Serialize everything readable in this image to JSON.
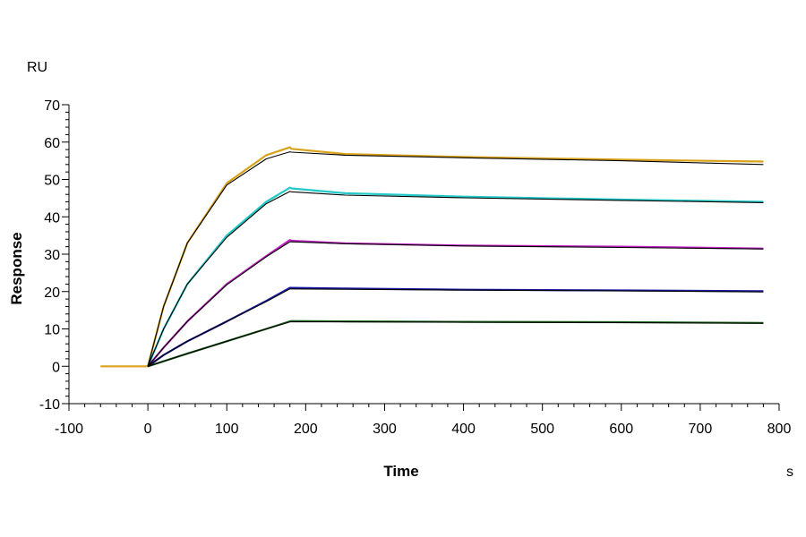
{
  "chart_data": {
    "type": "line",
    "xlabel": "Time",
    "ylabel": "Response",
    "x_unit": "s",
    "y_unit": "RU",
    "xlim": [
      -100,
      800
    ],
    "ylim": [
      -10,
      70
    ],
    "x_ticks": [
      -100,
      0,
      100,
      200,
      300,
      400,
      500,
      600,
      700,
      800
    ],
    "y_ticks": [
      -10,
      0,
      10,
      20,
      30,
      40,
      50,
      60,
      70
    ],
    "grid": false,
    "legend": "none",
    "series": [
      {
        "color": "#d9a21a",
        "x": [
          -60,
          0,
          20,
          50,
          100,
          150,
          180,
          182,
          250,
          400,
          600,
          780
        ],
        "y": [
          0,
          0,
          16,
          33,
          49,
          56.5,
          58.6,
          58.2,
          56.8,
          56,
          55.3,
          54.8
        ]
      },
      {
        "color": "#22c9c9",
        "x": [
          0,
          20,
          50,
          100,
          150,
          180,
          182,
          250,
          400,
          600,
          780
        ],
        "y": [
          0,
          10,
          22,
          35,
          44,
          47.8,
          47.6,
          46.3,
          45.4,
          44.6,
          44
        ]
      },
      {
        "color": "#c020c0",
        "x": [
          0,
          20,
          50,
          100,
          150,
          180,
          182,
          250,
          400,
          600,
          780
        ],
        "y": [
          0,
          5,
          12,
          22,
          29.5,
          33.8,
          33.6,
          32.9,
          32.3,
          32,
          31.5
        ]
      },
      {
        "color": "#1a1aa6",
        "x": [
          0,
          20,
          50,
          100,
          150,
          180,
          182,
          250,
          400,
          600,
          780
        ],
        "y": [
          0,
          3,
          6.7,
          12,
          17.5,
          21,
          21,
          20.8,
          20.5,
          20.3,
          20.1
        ]
      },
      {
        "color": "#1e6a1e",
        "x": [
          0,
          50,
          100,
          150,
          180,
          182,
          250,
          400,
          600,
          780
        ],
        "y": [
          0,
          3.4,
          6.7,
          10,
          12,
          12.1,
          12,
          11.9,
          11.8,
          11.6
        ]
      }
    ],
    "fits": [
      {
        "x": [
          0,
          20,
          50,
          100,
          150,
          180,
          182,
          250,
          400,
          600,
          780
        ],
        "y": [
          0,
          16,
          33,
          48.5,
          55.5,
          57.4,
          57.3,
          56.5,
          55.8,
          55,
          54
        ]
      },
      {
        "x": [
          0,
          20,
          50,
          100,
          150,
          180,
          182,
          250,
          400,
          600,
          780
        ],
        "y": [
          0,
          10,
          22,
          34.5,
          43.5,
          46.8,
          46.7,
          45.8,
          45.1,
          44.4,
          43.8
        ]
      },
      {
        "x": [
          0,
          20,
          50,
          100,
          150,
          180,
          182,
          250,
          400,
          600,
          780
        ],
        "y": [
          0,
          5,
          12,
          21.8,
          29.3,
          33.3,
          33.3,
          32.8,
          32.2,
          31.8,
          31.4
        ]
      },
      {
        "x": [
          0,
          20,
          50,
          100,
          150,
          180,
          182,
          250,
          400,
          600,
          780
        ],
        "y": [
          0,
          3,
          6.7,
          12,
          17.3,
          20.7,
          20.7,
          20.6,
          20.4,
          20.2,
          19.9
        ]
      },
      {
        "x": [
          0,
          50,
          100,
          150,
          180,
          182,
          250,
          400,
          600,
          780
        ],
        "y": [
          0,
          3.4,
          6.7,
          10,
          11.9,
          11.9,
          11.9,
          11.8,
          11.7,
          11.5
        ]
      }
    ]
  }
}
